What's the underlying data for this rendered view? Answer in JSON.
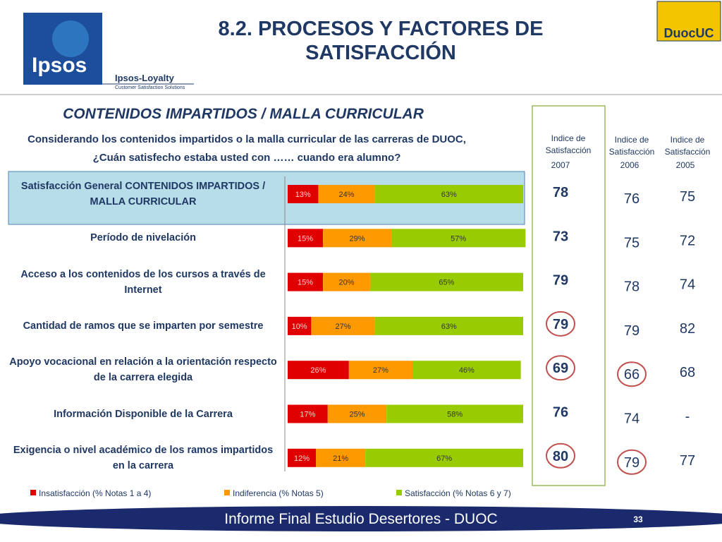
{
  "header": {
    "title": "8.2. PROCESOS Y FACTORES DE SATISFACCIÓN",
    "logo_left": "Ipsos",
    "logo_brand": "Ipsos-Loyalty",
    "logo_tagline": "Customer Satisfaction Solutions",
    "logo_right": "DuocUC"
  },
  "chart_data": {
    "type": "stacked-bar-horizontal",
    "title": "CONTENIDOS IMPARTIDOS / MALLA CURRICULAR",
    "subtitle": "Considerando los contenidos impartidos o la malla curricular de las carreras de DUOC, ¿Cuán satisfecho estaba usted con …… cuando era alumno?",
    "categories": [
      "Satisfacción General CONTENIDOS IMPARTIDOS / MALLA CURRICULAR",
      "Período de nivelación",
      "Acceso a los contenidos de los cursos a través de Internet",
      "Cantidad de ramos que se imparten por semestre",
      "Apoyo vocacional en relación a la orientación respecto de la carrera elegida",
      "Información Disponible de la Carrera",
      "Exigencia o nivel académico de los ramos impartidos en la carrera"
    ],
    "xlim": [
      0,
      100
    ],
    "series": [
      {
        "name": "Insatisfacción (% Notas 1 a 4)",
        "color": "#e00000",
        "values": [
          13,
          15,
          15,
          10,
          26,
          17,
          12
        ],
        "value_labels": [
          "13%",
          "15%",
          "15%",
          "10%",
          "26%",
          "17%",
          "12%"
        ]
      },
      {
        "name": "Indiferencia (% Notas 5)",
        "color": "#ff9900",
        "values": [
          24,
          29,
          20,
          27,
          27,
          25,
          21
        ],
        "value_labels": [
          "24%",
          "29%",
          "20%",
          "27%",
          "27%",
          "25%",
          "21%"
        ]
      },
      {
        "name": "Satisfacción (% Notas 6 y 7)",
        "color": "#99cc00",
        "values": [
          63,
          57,
          65,
          63,
          46,
          58,
          67
        ],
        "value_labels": [
          "63%",
          "57%",
          "65%",
          "63%",
          "46%",
          "58%",
          "67%"
        ]
      }
    ]
  },
  "index_table": {
    "columns": [
      {
        "header": "Indice de Satisfacción",
        "year": "2007",
        "values": [
          "78",
          "73",
          "79",
          "79",
          "69",
          "76",
          "80"
        ],
        "circled": [
          3,
          4,
          6
        ]
      },
      {
        "header": "Indice de Satisfacción",
        "year": "2006",
        "values": [
          "76",
          "75",
          "78",
          "79",
          "66",
          "74",
          "79"
        ],
        "circled": [
          4,
          6
        ]
      },
      {
        "header": "Indice de Satisfacción",
        "year": "2005",
        "values": [
          "75",
          "72",
          "74",
          "82",
          "68",
          "-",
          "77"
        ],
        "circled": []
      }
    ]
  },
  "footer": {
    "text": "Informe Final Estudio Desertores - DUOC",
    "page": "33"
  }
}
